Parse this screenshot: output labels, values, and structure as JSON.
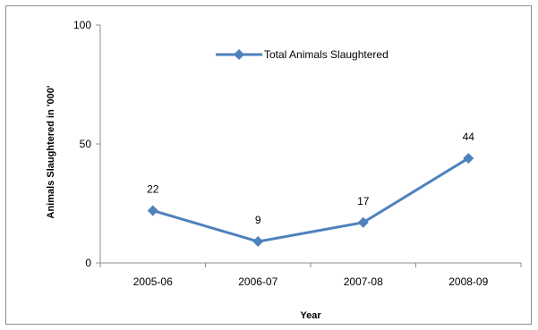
{
  "chart_data": {
    "type": "line",
    "title": "",
    "xlabel": "Year",
    "ylabel": "Animals Slaughtered in '000'",
    "categories": [
      "2005-06",
      "2006-07",
      "2007-08",
      "2008-09"
    ],
    "ylim": [
      0,
      100
    ],
    "yticks": [
      0,
      50,
      100
    ],
    "grid": false,
    "legend_position": "top-center",
    "series": [
      {
        "name": "Total Animals Slaughtered",
        "values": [
          22,
          9,
          17,
          44
        ],
        "data_labels": [
          "22",
          "9",
          "17",
          "44"
        ],
        "color": "#4f81bd",
        "marker": "diamond"
      }
    ]
  }
}
